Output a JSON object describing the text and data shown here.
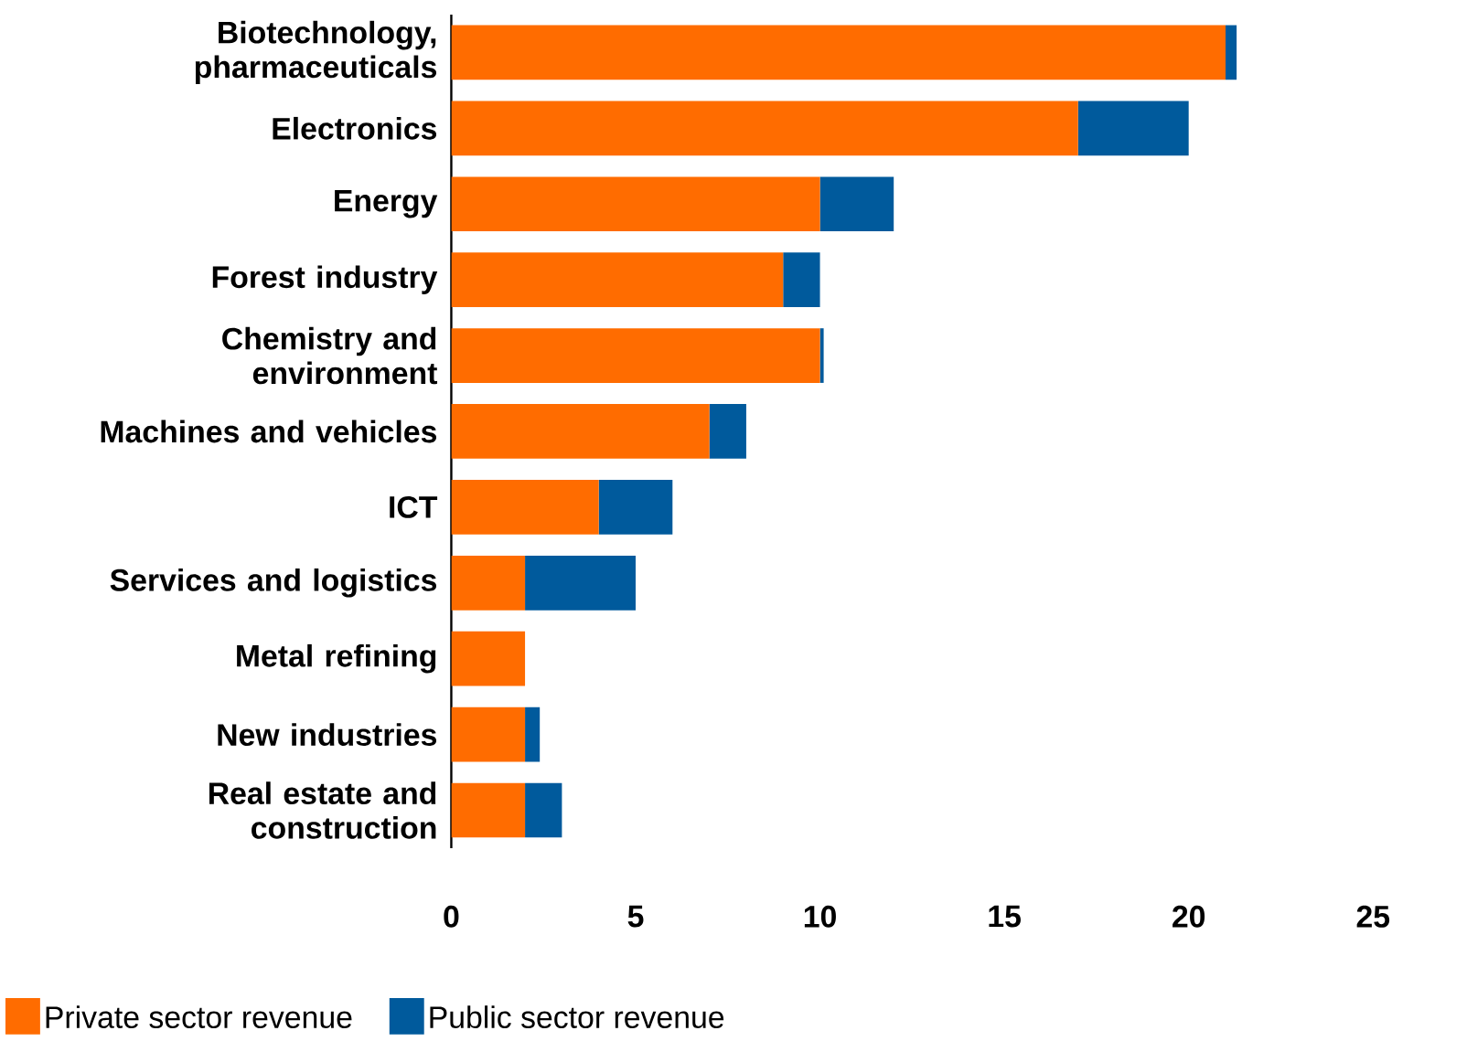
{
  "chart_data": {
    "type": "bar",
    "orientation": "horizontal",
    "stacked": true,
    "categories": [
      "Biotechnology, pharmaceuticals",
      "Electronics",
      "Energy",
      "Forest industry",
      "Chemistry and environment",
      "Machines and vehicles",
      "ICT",
      "Services and logistics",
      "Metal refining",
      "New industries",
      "Real estate and construction"
    ],
    "series": [
      {
        "name": "Private sector revenue",
        "color": "#ff6c00",
        "values": [
          21.0,
          17.0,
          10.0,
          9.0,
          10.0,
          7.0,
          4.0,
          2.0,
          2.0,
          2.0,
          2.0
        ]
      },
      {
        "name": "Public sector revenue",
        "color": "#005a9c",
        "values": [
          0.3,
          3.0,
          2.0,
          1.0,
          0.1,
          1.0,
          2.0,
          3.0,
          0.0,
          0.4,
          1.0
        ]
      }
    ],
    "xlim": [
      0,
      25
    ],
    "xticks": [
      0,
      5,
      10,
      15,
      20,
      25
    ],
    "grid": false,
    "legend": "bottom"
  }
}
